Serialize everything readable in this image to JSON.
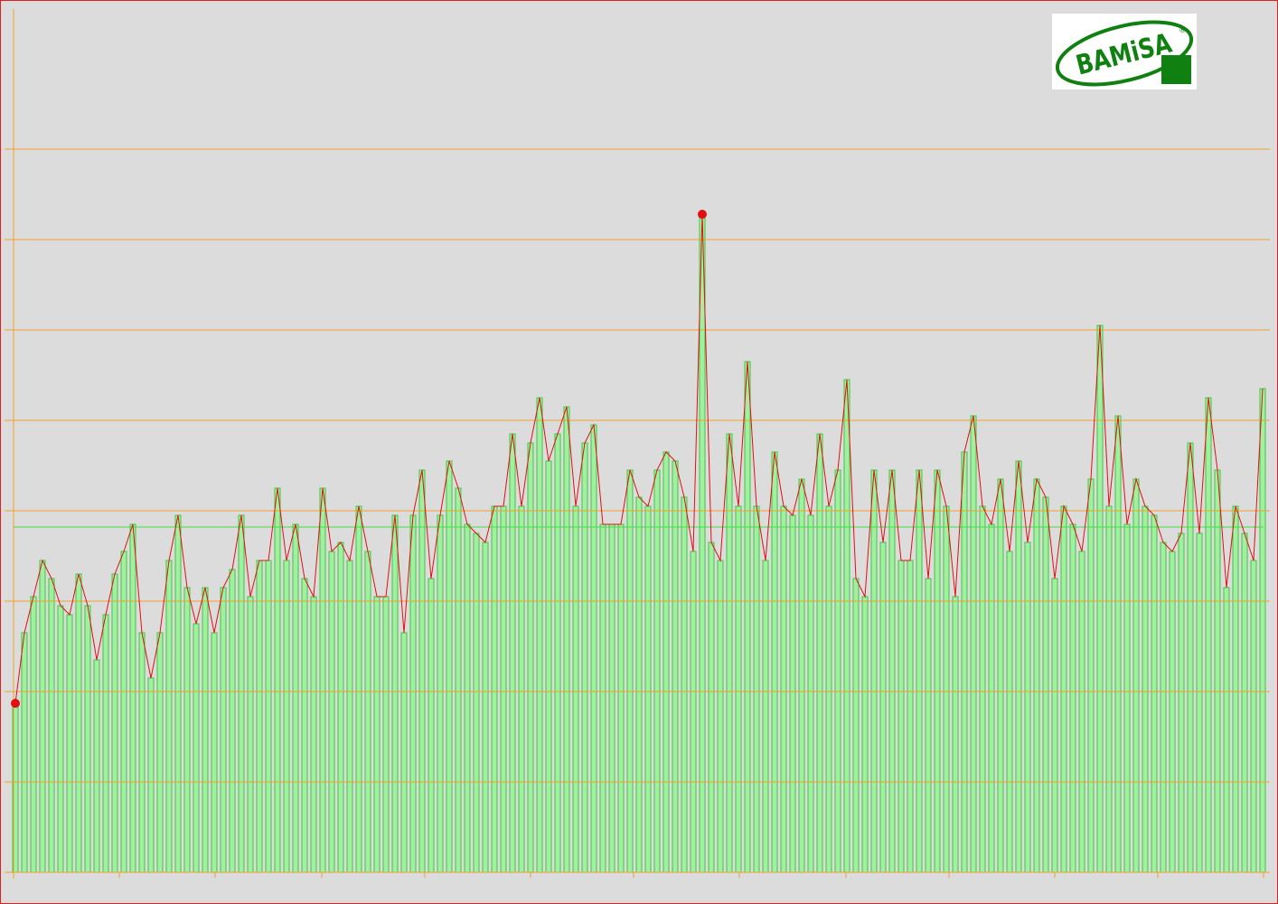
{
  "chart_data": {
    "type": "bar_line",
    "logo": {
      "text": "BAMiSA",
      "mark": "®"
    },
    "x": [
      0,
      1,
      2,
      3,
      4,
      5,
      6,
      7,
      8,
      9,
      10,
      11,
      12,
      13,
      14,
      15,
      16,
      17,
      18,
      19,
      20,
      21,
      22,
      23,
      24,
      25,
      26,
      27,
      28,
      29,
      30,
      31,
      32,
      33,
      34,
      35,
      36,
      37,
      38,
      39,
      40,
      41,
      42,
      43,
      44,
      45,
      46,
      47,
      48,
      49,
      50,
      51,
      52,
      53,
      54,
      55,
      56,
      57,
      58,
      59,
      60,
      61,
      62,
      63,
      64,
      65,
      66,
      67,
      68,
      69,
      70,
      71,
      72,
      73,
      74,
      75,
      76,
      77,
      78,
      79,
      80,
      81,
      82,
      83,
      84,
      85,
      86,
      87,
      88,
      89,
      90,
      91,
      92,
      93,
      94,
      95,
      96,
      97,
      98,
      99,
      100,
      101,
      102,
      103,
      104,
      105,
      106,
      107,
      108,
      109,
      110,
      111,
      112,
      113,
      114,
      115,
      116,
      117,
      118,
      119,
      120,
      121,
      122,
      123,
      124,
      125,
      126,
      127,
      128,
      129,
      130,
      131,
      132,
      133,
      134,
      135,
      136,
      137,
      138
    ],
    "values": [
      1.87,
      2.65,
      3.05,
      3.45,
      3.25,
      2.95,
      2.85,
      3.3,
      2.95,
      2.35,
      2.85,
      3.3,
      3.55,
      3.85,
      2.65,
      2.15,
      2.65,
      3.45,
      3.95,
      3.15,
      2.75,
      3.15,
      2.65,
      3.15,
      3.35,
      3.95,
      3.05,
      3.45,
      3.45,
      4.25,
      3.45,
      3.85,
      3.25,
      3.05,
      4.25,
      3.55,
      3.65,
      3.45,
      4.05,
      3.55,
      3.05,
      3.05,
      3.95,
      2.65,
      3.95,
      4.45,
      3.25,
      3.95,
      4.55,
      4.25,
      3.85,
      3.75,
      3.65,
      4.05,
      4.05,
      4.85,
      4.05,
      4.75,
      5.25,
      4.55,
      4.85,
      5.15,
      4.05,
      4.75,
      4.95,
      3.85,
      3.85,
      3.85,
      4.45,
      4.15,
      4.05,
      4.45,
      4.65,
      4.55,
      4.15,
      3.55,
      7.28,
      3.65,
      3.45,
      4.85,
      4.05,
      5.65,
      4.05,
      3.45,
      4.65,
      4.05,
      3.95,
      4.35,
      3.95,
      4.85,
      4.05,
      4.45,
      5.45,
      3.25,
      3.05,
      4.45,
      3.65,
      4.45,
      3.45,
      3.45,
      4.45,
      3.25,
      4.45,
      4.05,
      3.05,
      4.65,
      5.05,
      4.05,
      3.85,
      4.35,
      3.55,
      4.55,
      3.65,
      4.35,
      4.15,
      3.25,
      4.05,
      3.85,
      3.55,
      4.35,
      6.05,
      4.05,
      5.05,
      3.85,
      4.35,
      4.05,
      3.95,
      3.65,
      3.55,
      3.75,
      4.75,
      3.75,
      5.25,
      4.45,
      3.15,
      4.05,
      3.75,
      3.45,
      5.35
    ],
    "markers": [
      0,
      76
    ],
    "mean_line": 3.82,
    "bar_color": "#a4eea4",
    "bar_edge_color": "#3cc83c",
    "line_color": "#e01010",
    "grid_color": "#f0a030",
    "mean_color": "#44dd44",
    "xlim": [
      -0.2,
      138.1
    ],
    "xticks": [
      -0.2,
      11.5,
      22.1,
      33.9,
      45.3,
      57,
      68.4,
      80.1,
      91.9,
      103.3,
      115,
      126.4,
      138.1
    ],
    "ylim": [
      0,
      9.65
    ],
    "yticks": [
      0,
      1,
      2,
      3,
      4,
      5,
      6,
      7,
      8
    ],
    "grid": true
  }
}
